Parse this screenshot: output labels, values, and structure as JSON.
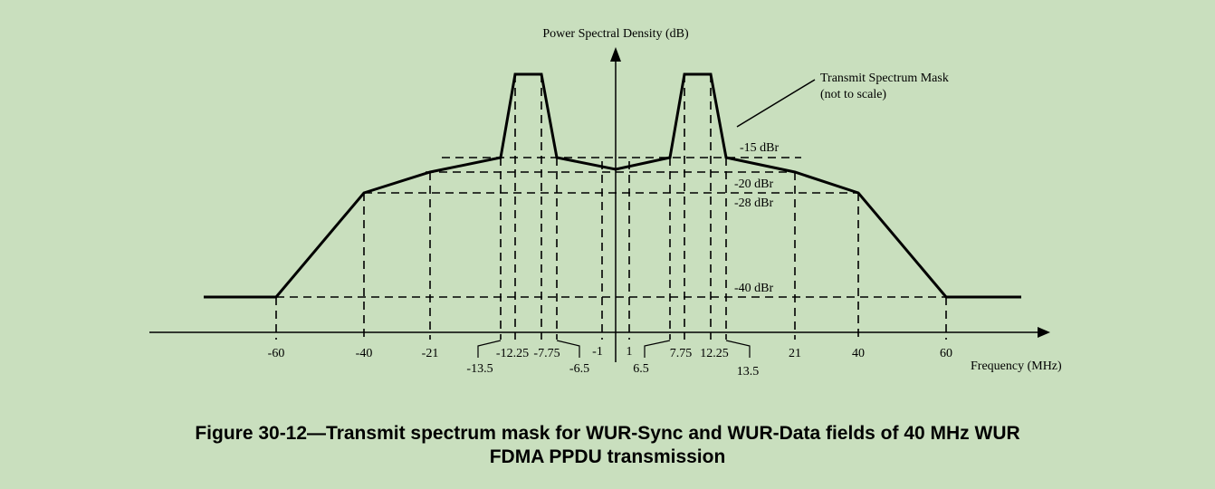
{
  "diagram": {
    "y_axis_label": "Power Spectral Density (dB)",
    "x_axis_label": "Frequency (MHz)",
    "mask_note_line1": "Transmit Spectrum Mask",
    "mask_note_line2": "(not to scale)",
    "levels": [
      "-15 dBr",
      "-20 dBr",
      "-28 dBr",
      "-40 dBr"
    ],
    "x_ticks": [
      "-60",
      "-40",
      "-21",
      "-13.5",
      "-12.25",
      "-7.75",
      "-6.5",
      "-1",
      "1",
      "6.5",
      "7.75",
      "12.25",
      "13.5",
      "21",
      "40",
      "60"
    ]
  },
  "caption": {
    "line1": "Figure 30-12—Transmit spectrum mask for WUR-Sync and WUR-Data fields of 40 MHz WUR",
    "line2": "FDMA PPDU transmission"
  }
}
